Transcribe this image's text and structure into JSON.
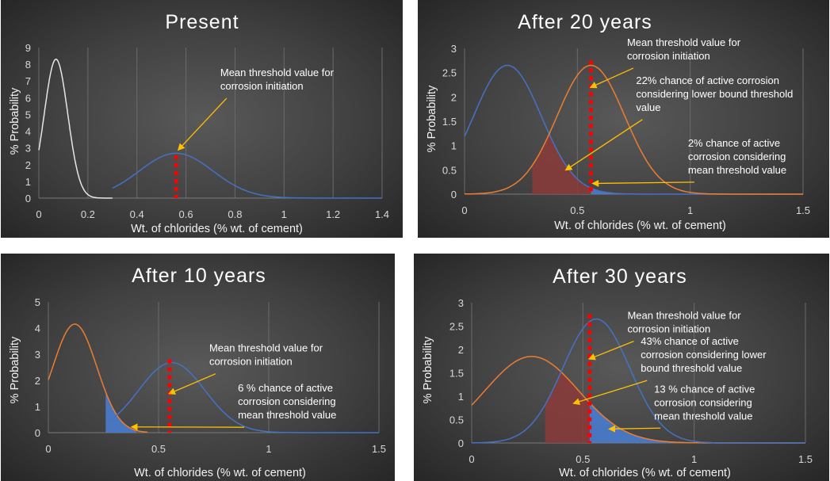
{
  "colors": {
    "white_curve": "#e6e6e6",
    "blue_curve": "#4472c4",
    "orange_curve": "#ed7d31",
    "blue_fill": "#4a7fd6",
    "red_fill": "#8b3a3a",
    "threshold_line": "#ff0000",
    "arrow": "#ffc000",
    "grid": "#6a6a6a"
  },
  "chart_data": [
    {
      "type": "line",
      "title": "Present",
      "xlabel": "Wt. of chlorides (% wt. of cement)",
      "ylabel": "% Probability",
      "xlim": [
        0,
        1.4
      ],
      "ylim": [
        0,
        9
      ],
      "xticks": [
        "0",
        "0.2",
        "0.4",
        "0.6",
        "0.8",
        "1",
        "1.2",
        "1.4"
      ],
      "yticks": [
        "0",
        "1",
        "2",
        "3",
        "4",
        "5",
        "6",
        "7",
        "8",
        "9"
      ],
      "grid": "vertical",
      "threshold_x": 0.56,
      "series": [
        {
          "color_key": "white_curve",
          "mean": 0.07,
          "sd": 0.048,
          "peak": 8.3,
          "start_x": 0.0,
          "end_x": 0.3
        },
        {
          "color_key": "blue_curve",
          "mean": 0.56,
          "sd": 0.15,
          "peak": 2.68,
          "start_x": 0.3,
          "end_x": 1.4
        }
      ],
      "shaded": [],
      "annotations": [
        {
          "lines": [
            "Mean threshold value for",
            "corrosion initiation"
          ],
          "x": 0.74,
          "y": 7.3,
          "target": [
            0.57,
            2.9
          ]
        }
      ]
    },
    {
      "type": "line",
      "title": "After 20 years",
      "xlabel": "Wt. of chlorides (% wt. of cement)",
      "ylabel": "% Probability",
      "xlim": [
        0,
        1.5
      ],
      "ylim": [
        0,
        3
      ],
      "xticks": [
        "0",
        "0.5",
        "1",
        "1.5"
      ],
      "yticks": [
        "0",
        "0.5",
        "1",
        "1.5",
        "2",
        "2.5",
        "3"
      ],
      "grid": "vertical",
      "threshold_x": 0.56,
      "series": [
        {
          "color_key": "blue_curve",
          "mean": 0.19,
          "sd": 0.15,
          "peak": 2.65,
          "start_x": 0.0,
          "end_x": 1.5
        },
        {
          "color_key": "orange_curve",
          "mean": 0.56,
          "sd": 0.15,
          "peak": 2.65,
          "start_x": 0.0,
          "end_x": 1.5
        }
      ],
      "shaded": [
        {
          "kind": "min",
          "from": 0.3,
          "to": 0.56,
          "color_key": "red_fill"
        },
        {
          "kind": "series0",
          "from": 0.56,
          "to": 0.78,
          "color_key": "blue_fill"
        }
      ],
      "annotations": [
        {
          "lines": [
            "Mean threshold value for",
            "corrosion initiation"
          ],
          "x": 0.72,
          "y": 3.05,
          "target": [
            0.56,
            2.2
          ]
        },
        {
          "lines": [
            "22% chance of active corrosion",
            "considering lower bound threshold",
            "value"
          ],
          "x": 0.76,
          "y": 2.27,
          "target": [
            0.45,
            0.5
          ]
        },
        {
          "lines": [
            "2% chance of active",
            "corrosion considering",
            "mean threshold value"
          ],
          "x": 0.99,
          "y": 0.98,
          "target": [
            0.57,
            0.22
          ]
        }
      ]
    },
    {
      "type": "line",
      "title": "After 10 years",
      "xlabel": "Wt. of chlorides (% wt. of cement)",
      "ylabel": "% Probability",
      "xlim": [
        0,
        1.5
      ],
      "ylim": [
        0,
        5
      ],
      "xticks": [
        "0",
        "0.5",
        "1",
        "1.5"
      ],
      "yticks": [
        "0",
        "1",
        "2",
        "3",
        "4",
        "5"
      ],
      "grid": "vertical",
      "threshold_x": 0.55,
      "series": [
        {
          "color_key": "orange_curve",
          "mean": 0.12,
          "sd": 0.1,
          "peak": 4.15,
          "start_x": 0.0,
          "end_x": 0.45
        },
        {
          "color_key": "blue_curve",
          "mean": 0.56,
          "sd": 0.15,
          "peak": 2.68,
          "start_x": 0.28,
          "end_x": 1.5
        }
      ],
      "shaded": [
        {
          "kind": "series0",
          "from": 0.26,
          "to": 0.4,
          "color_key": "blue_fill"
        }
      ],
      "annotations": [
        {
          "lines": [
            "Mean threshold value for",
            "corrosion initiation"
          ],
          "x": 0.73,
          "y": 3.1,
          "target": [
            0.55,
            1.5
          ]
        },
        {
          "lines": [
            "6 % chance of active",
            "corrosion considering",
            "mean threshold value"
          ],
          "x": 0.86,
          "y": 1.57,
          "target": [
            0.38,
            0.22
          ]
        }
      ]
    },
    {
      "type": "line",
      "title": "After 30 years",
      "xlabel": "Wt. of chlorides (% wt. of cement)",
      "ylabel": "% Probability",
      "xlim": [
        0,
        1.5
      ],
      "ylim": [
        0,
        3
      ],
      "xticks": [
        "0",
        "0.5",
        "1",
        "1.5"
      ],
      "yticks": [
        "0",
        "0.5",
        "1",
        "1.5",
        "2",
        "2.5",
        "3"
      ],
      "grid": "vertical",
      "threshold_x": 0.53,
      "series": [
        {
          "color_key": "orange_curve",
          "mean": 0.27,
          "sd": 0.21,
          "peak": 1.85,
          "start_x": 0.0,
          "end_x": 1.5
        },
        {
          "color_key": "blue_curve",
          "mean": 0.56,
          "sd": 0.15,
          "peak": 2.65,
          "start_x": 0.0,
          "end_x": 1.5
        }
      ],
      "shaded": [
        {
          "kind": "min",
          "from": 0.33,
          "to": 0.53,
          "color_key": "red_fill"
        },
        {
          "kind": "series0",
          "from": 0.53,
          "to": 0.95,
          "color_key": "blue_fill"
        }
      ],
      "annotations": [
        {
          "lines": [
            "Mean threshold value for",
            "corrosion initiation"
          ],
          "x": 0.7,
          "y": 2.65,
          "target": [
            0.53,
            1.8
          ]
        },
        {
          "lines": [
            "43% chance of active",
            "corrosion considering lower",
            "bound threshold value"
          ],
          "x": 0.76,
          "y": 2.1,
          "target": [
            0.46,
            0.85
          ]
        },
        {
          "lines": [
            "13 % chance of active",
            "corrosion considering",
            "mean threshold value"
          ],
          "x": 0.82,
          "y": 1.08,
          "target": [
            0.62,
            0.3
          ]
        }
      ]
    }
  ]
}
